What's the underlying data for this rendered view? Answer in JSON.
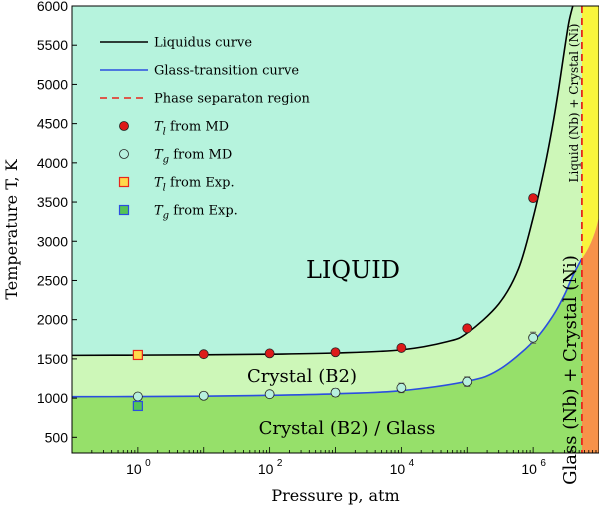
{
  "chart_data": {
    "type": "line",
    "xlabel": "Pressure p, atm",
    "ylabel": "Temperature T, K",
    "xscale": "log",
    "xlim": [
      0.1,
      10000000
    ],
    "ylim": [
      300,
      6000
    ],
    "x_ticks": [
      1,
      100,
      10000,
      1000000
    ],
    "x_tick_labels": [
      "10",
      "10",
      "10",
      "10"
    ],
    "x_tick_exponents": [
      "0",
      "2",
      "4",
      "6"
    ],
    "y_ticks": [
      500,
      1000,
      1500,
      2000,
      2500,
      3000,
      3500,
      4000,
      4500,
      5000,
      5500,
      6000
    ],
    "y_tick_labels": [
      "500",
      "1000",
      "1500",
      "2000",
      "2500",
      "3000",
      "3500",
      "4000",
      "4500",
      "5000",
      "5500",
      "6000"
    ],
    "phase_separation_pressure": 5500000,
    "series": [
      {
        "name": "Liquidus curve",
        "kind": "line",
        "color": "#000000",
        "x": [
          0.1,
          1,
          10,
          100,
          1000,
          10000,
          50000,
          100000,
          300000,
          600000,
          1000000,
          1500000,
          2000000,
          2500000,
          3000000,
          3500000,
          4000000
        ],
        "y": [
          1545,
          1548,
          1552,
          1560,
          1575,
          1615,
          1720,
          1830,
          2200,
          2650,
          3300,
          3950,
          4500,
          5000,
          5450,
          5800,
          6000
        ]
      },
      {
        "name": "Glass-transition curve",
        "kind": "line",
        "color": "#2b4ee0",
        "x": [
          0.1,
          1,
          10,
          100,
          1000,
          10000,
          100000,
          300000,
          1000000,
          2000000,
          3000000,
          4000000,
          5500000
        ],
        "y": [
          1018,
          1020,
          1025,
          1035,
          1055,
          1095,
          1215,
          1360,
          1720,
          2050,
          2320,
          2560,
          2780
        ]
      },
      {
        "name": "T_l from MD",
        "kind": "marker",
        "marker": "circle",
        "color": "#dd1a1a",
        "x": [
          1,
          10,
          100,
          1000,
          10000,
          100000,
          1000000
        ],
        "y": [
          1550,
          1560,
          1570,
          1585,
          1640,
          1890,
          3550
        ]
      },
      {
        "name": "T_g from MD",
        "kind": "marker",
        "marker": "circle",
        "color": "#b7f0de",
        "x": [
          1,
          10,
          100,
          1000,
          10000,
          100000,
          1000000
        ],
        "y": [
          1020,
          1030,
          1050,
          1070,
          1130,
          1210,
          1770
        ],
        "yerr": [
          40,
          40,
          40,
          50,
          60,
          60,
          70
        ]
      },
      {
        "name": "T_l from Exp.",
        "kind": "marker",
        "marker": "square",
        "color": "#ffd94a",
        "x": [
          1
        ],
        "y": [
          1550
        ]
      },
      {
        "name": "T_g from Exp.",
        "kind": "marker",
        "marker": "square",
        "color": "#55c455",
        "x": [
          1
        ],
        "y": [
          900
        ]
      }
    ],
    "legend": {
      "placement": "top-left",
      "entries": [
        {
          "label": "Liquidus curve",
          "type": "line",
          "color": "#000000",
          "dashed": false
        },
        {
          "label": "Glass-transition curve",
          "type": "line",
          "color": "#2b4ee0",
          "dashed": false
        },
        {
          "label": "Phase separaton region",
          "type": "line",
          "color": "#e8261c",
          "dashed": true
        },
        {
          "label": "T",
          "sub": "l",
          "suffix": " from MD",
          "type": "circle",
          "color": "#dd1a1a"
        },
        {
          "label": "T",
          "sub": "g",
          "suffix": " from MD",
          "type": "circle",
          "color": "#b7f0de"
        },
        {
          "label": "T",
          "sub": "l",
          "suffix": " from Exp.",
          "type": "square",
          "color": "#ffd94a"
        },
        {
          "label": "T",
          "sub": "g",
          "suffix": " from Exp.",
          "type": "square",
          "color": "#55c455"
        }
      ]
    },
    "regions": {
      "liquid": {
        "label": "LIQUID",
        "color": "#b6f3dd"
      },
      "crystal_b2": {
        "label": "Crystal (B2)",
        "color": "#cdf7b8"
      },
      "crystal_glass": {
        "label": "Crystal (B2) / Glass",
        "color": "#96e06a"
      },
      "liquid_nb": {
        "label": "Liquid (Nb) + Crystal (Ni)",
        "color": "#f9f53c"
      },
      "glass_nb": {
        "label": "Glass (Nb) + Crystal (Ni)",
        "color": "#f7924a"
      }
    },
    "grid": false
  }
}
